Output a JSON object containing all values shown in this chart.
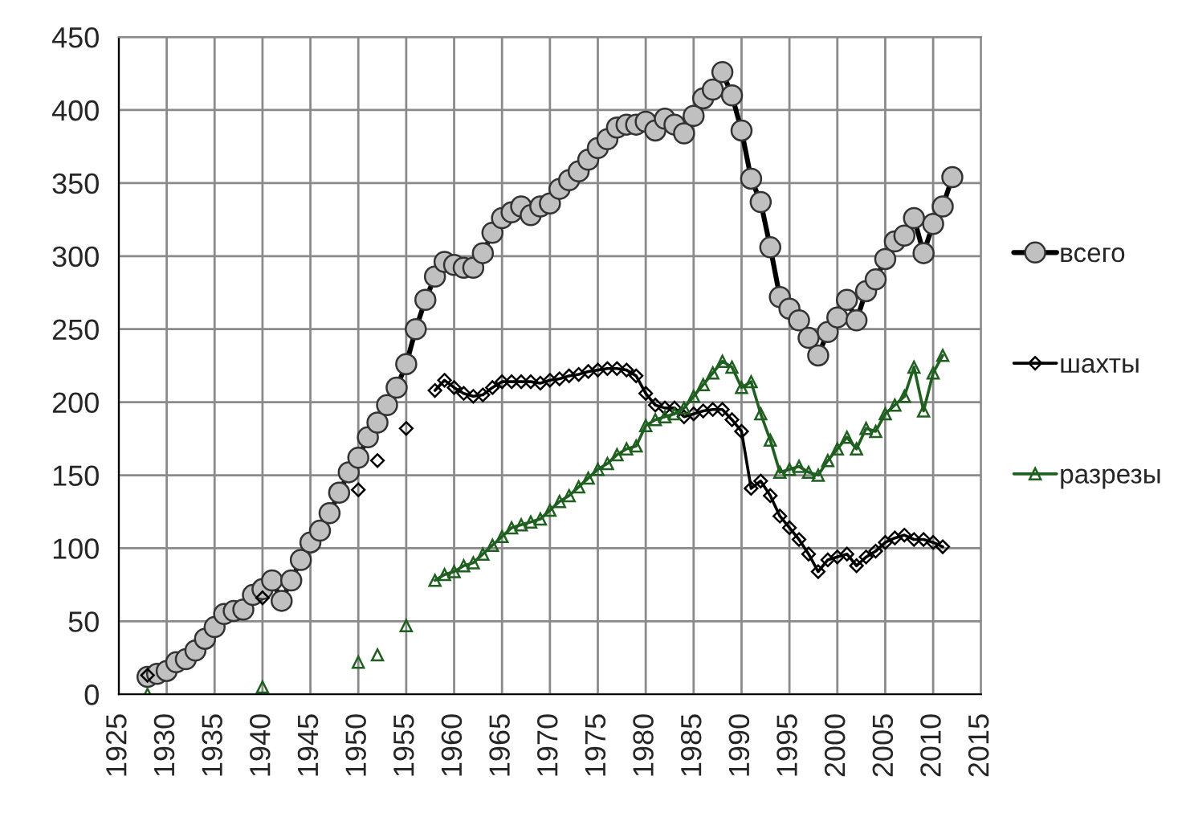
{
  "chart_data": {
    "type": "line",
    "x": [
      1928,
      1929,
      1930,
      1931,
      1932,
      1933,
      1934,
      1935,
      1936,
      1937,
      1938,
      1939,
      1940,
      1941,
      1942,
      1943,
      1944,
      1945,
      1946,
      1947,
      1948,
      1949,
      1950,
      1951,
      1952,
      1953,
      1954,
      1955,
      1956,
      1957,
      1958,
      1959,
      1960,
      1961,
      1962,
      1963,
      1964,
      1965,
      1966,
      1967,
      1968,
      1969,
      1970,
      1971,
      1972,
      1973,
      1974,
      1975,
      1976,
      1977,
      1978,
      1979,
      1980,
      1981,
      1982,
      1983,
      1984,
      1985,
      1986,
      1987,
      1988,
      1989,
      1990,
      1991,
      1992,
      1993,
      1994,
      1995,
      1996,
      1997,
      1998,
      1999,
      2000,
      2001,
      2002,
      2003,
      2004,
      2005,
      2006,
      2007,
      2008,
      2009,
      2010,
      2011,
      2012
    ],
    "series": [
      {
        "name": "всего",
        "color": "#000000",
        "marker": "circle",
        "values": [
          12,
          14,
          16,
          22,
          24,
          30,
          38,
          46,
          55,
          57,
          58,
          68,
          72,
          78,
          64,
          78,
          92,
          104,
          112,
          124,
          138,
          152,
          162,
          176,
          186,
          198,
          210,
          226,
          250,
          270,
          286,
          296,
          294,
          292,
          292,
          302,
          316,
          326,
          330,
          334,
          328,
          334,
          336,
          346,
          352,
          358,
          366,
          374,
          380,
          388,
          390,
          390,
          392,
          386,
          394,
          390,
          384,
          396,
          408,
          414,
          426,
          410,
          386,
          353,
          337,
          306,
          272,
          264,
          256,
          244,
          232,
          248,
          258,
          270,
          256,
          276,
          284,
          298,
          310,
          314,
          326,
          302,
          322,
          334,
          354
        ]
      },
      {
        "name": "шахты",
        "color": "#000000",
        "marker": "diamond",
        "values": [
          13,
          null,
          null,
          null,
          null,
          null,
          null,
          null,
          null,
          null,
          null,
          null,
          66,
          null,
          null,
          null,
          null,
          null,
          null,
          null,
          null,
          null,
          140,
          null,
          160,
          null,
          null,
          182,
          null,
          null,
          208,
          215,
          210,
          206,
          204,
          205,
          210,
          214,
          214,
          214,
          214,
          213,
          215,
          216,
          218,
          219,
          221,
          222,
          223,
          223,
          222,
          218,
          206,
          198,
          196,
          196,
          190,
          192,
          194,
          195,
          195,
          188,
          180,
          141,
          146,
          136,
          122,
          114,
          106,
          96,
          84,
          92,
          94,
          96,
          88,
          94,
          98,
          104,
          107,
          109,
          106,
          106,
          104,
          101,
          null
        ]
      },
      {
        "name": "разрезы",
        "color": "#1f5f1f",
        "marker": "triangle",
        "values": [
          0,
          null,
          null,
          null,
          null,
          null,
          null,
          null,
          null,
          null,
          null,
          null,
          5,
          null,
          null,
          null,
          null,
          null,
          null,
          null,
          null,
          null,
          22,
          null,
          27,
          null,
          null,
          47,
          null,
          null,
          78,
          82,
          84,
          88,
          90,
          96,
          102,
          108,
          114,
          116,
          118,
          120,
          126,
          132,
          136,
          142,
          148,
          154,
          158,
          164,
          168,
          170,
          184,
          188,
          190,
          192,
          196,
          204,
          212,
          220,
          228,
          224,
          210,
          214,
          192,
          174,
          152,
          154,
          156,
          152,
          150,
          160,
          168,
          176,
          168,
          182,
          180,
          192,
          198,
          204,
          224,
          194,
          220,
          232,
          null
        ]
      }
    ],
    "xlim": [
      1925,
      2015
    ],
    "xticks": [
      1925,
      1930,
      1935,
      1940,
      1945,
      1950,
      1955,
      1960,
      1965,
      1970,
      1975,
      1980,
      1985,
      1990,
      1995,
      2000,
      2005,
      2010,
      2015
    ],
    "ylim": [
      0,
      450
    ],
    "yticks": [
      0,
      50,
      100,
      150,
      200,
      250,
      300,
      350,
      400,
      450
    ],
    "grid": true,
    "legend": "right"
  }
}
